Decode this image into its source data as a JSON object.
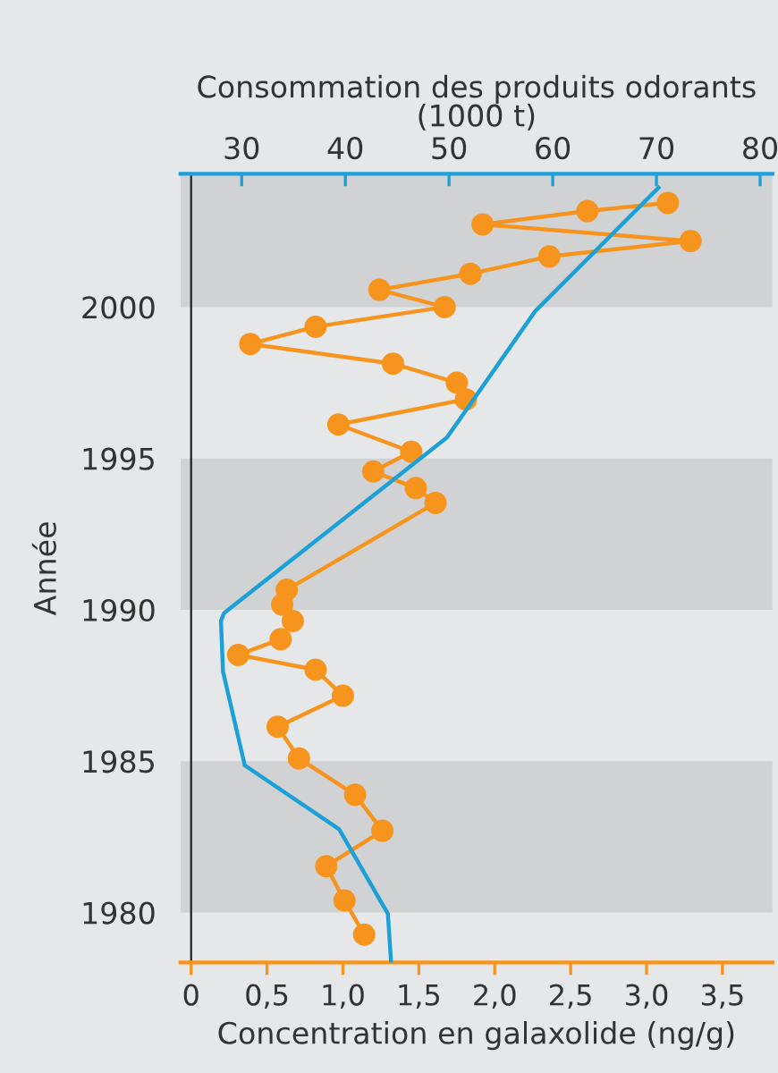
{
  "chart_data": {
    "type": "line",
    "xlabel": "Concentration en galaxolide (ng/g)",
    "x2label": "Consommation des produits odorants\n(1000 t)",
    "ylabel": "Année",
    "xlim": [
      -0.07,
      3.83
    ],
    "xticks": [
      0,
      {
        "value": 0.5,
        "label": "0,5"
      },
      {
        "value": 1.0,
        "label": "1,0"
      },
      {
        "value": 1.5,
        "label": "1,5"
      },
      {
        "value": 2.0,
        "label": "2,0"
      },
      {
        "value": 2.5,
        "label": "2,5"
      },
      {
        "value": 3.0,
        "label": "3,0"
      },
      {
        "value": 3.5,
        "label": "3,5"
      }
    ],
    "x2lim": [
      24.1,
      81.2
    ],
    "x2ticks": [
      30,
      40,
      50,
      60,
      70,
      80
    ],
    "ylim": [
      1978.35,
      2004.4
    ],
    "yticks": [
      1980,
      1985,
      1990,
      1995,
      2000
    ],
    "bands": [
      {
        "axis": "y",
        "from": 1980,
        "to": 1985,
        "color": "#d1d2d4"
      },
      {
        "axis": "y",
        "from": 1990,
        "to": 1995,
        "color": "#d1d2d4"
      },
      {
        "axis": "y",
        "from": 2000,
        "to": 2004.4,
        "color": "#d1d2d4"
      }
    ],
    "series": [
      {
        "color": "#f7941d",
        "marker": "circle",
        "x": [
          3.14,
          2.61,
          1.92,
          3.29,
          2.36,
          1.84,
          1.24,
          1.67,
          0.82,
          0.39,
          1.33,
          1.75,
          1.81,
          0.97,
          1.45,
          1.2,
          1.48,
          1.61,
          0.63,
          0.6,
          0.67,
          0.59,
          0.31,
          0.82,
          1.0,
          0.57,
          0.71,
          1.08,
          1.26,
          0.89,
          1.01,
          1.14
        ],
        "values": [
          2003.44,
          2003.17,
          2002.73,
          2002.18,
          2001.67,
          2001.1,
          2000.57,
          2000.0,
          1999.35,
          1998.78,
          1998.13,
          1997.5,
          1996.95,
          1996.12,
          1995.22,
          1994.57,
          1994.02,
          1993.53,
          1990.66,
          1990.17,
          1989.63,
          1989.03,
          1988.51,
          1988.02,
          1987.16,
          1986.14,
          1985.09,
          1983.89,
          1982.7,
          1981.53,
          1980.4,
          1979.27
        ]
      },
      {
        "color": "#1ba1d8",
        "axis": "x2",
        "marker": "none",
        "x": [
          70.2,
          58.3,
          49.8,
          28.3,
          28.0,
          28.2,
          30.3,
          39.4,
          44.1,
          44.4
        ],
        "values": [
          2003.94,
          1999.86,
          1995.69,
          1989.89,
          1989.63,
          1987.96,
          1984.86,
          1982.75,
          1979.96,
          1978.4
        ]
      }
    ]
  }
}
